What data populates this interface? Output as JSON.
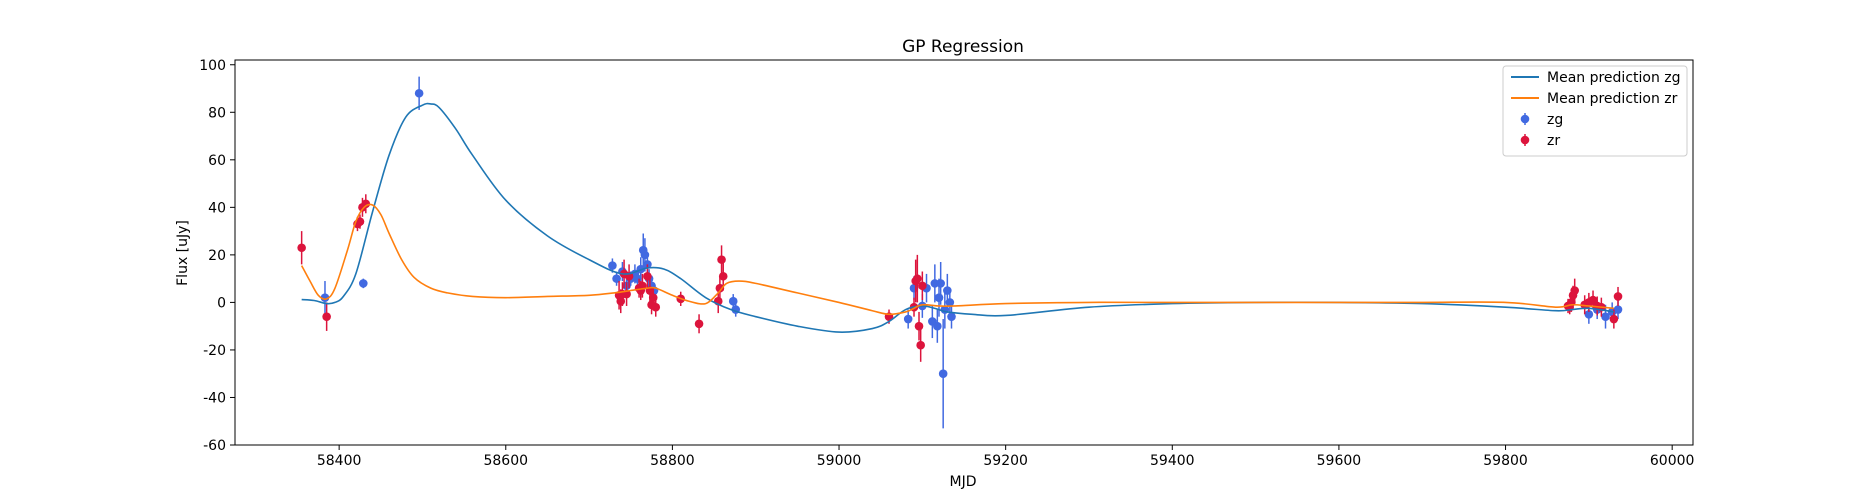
{
  "chart_data": {
    "type": "scatter",
    "title": "GP Regression",
    "xlabel": "MJD",
    "ylabel": "Flux [uJy]",
    "xlim": [
      58275,
      60025
    ],
    "ylim": [
      -60,
      102
    ],
    "xticks": [
      58400,
      58600,
      58800,
      59000,
      59200,
      59400,
      59600,
      59800,
      60000
    ],
    "yticks": [
      -60,
      -40,
      -20,
      0,
      20,
      40,
      60,
      80,
      100
    ],
    "grid": false,
    "legend_position": "top-right",
    "colors": {
      "zg_line": "#1f77b4",
      "zr_line": "#ff7f0e",
      "zg_points": "#4169e1",
      "zr_points": "#dc143c"
    },
    "lines": [
      {
        "name": "Mean prediction zg",
        "x": [
          58355,
          58370,
          58385,
          58395,
          58405,
          58420,
          58440,
          58460,
          58480,
          58500,
          58510,
          58520,
          58540,
          58560,
          58600,
          58650,
          58700,
          58740,
          58770,
          58790,
          58810,
          58840,
          58870,
          58900,
          58950,
          59000,
          59040,
          59060,
          59080,
          59100,
          59115,
          59130,
          59160,
          59200,
          59300,
          59400,
          59500,
          59600,
          59700,
          59800,
          59860,
          59880,
          59900,
          59930
        ],
        "y": [
          1.2,
          0.8,
          -0.5,
          0.0,
          2.5,
          12,
          38,
          62,
          78,
          83,
          83.5,
          82,
          73,
          62,
          43,
          28,
          18,
          12,
          14.5,
          14,
          10,
          2,
          -3,
          -6,
          -10,
          -12.5,
          -11,
          -8,
          -3,
          -1.5,
          -2.5,
          -4,
          -5,
          -5.5,
          -2,
          -0.5,
          0,
          0,
          -0.5,
          -2,
          -3.5,
          -3,
          -2.5,
          -4
        ]
      },
      {
        "name": "Mean prediction zr",
        "x": [
          58355,
          58365,
          58375,
          58385,
          58395,
          58410,
          58420,
          58430,
          58440,
          58450,
          58460,
          58475,
          58490,
          58510,
          58530,
          58560,
          58600,
          58650,
          58700,
          58730,
          58750,
          58770,
          58780,
          58800,
          58820,
          58840,
          58855,
          58865,
          58880,
          58900,
          58950,
          59000,
          59040,
          59060,
          59080,
          59090,
          59100,
          59120,
          59140,
          59200,
          59300,
          59400,
          59500,
          59600,
          59700,
          59800,
          59860,
          59880,
          59900,
          59930
        ],
        "y": [
          15.5,
          9,
          3,
          1.5,
          6,
          22,
          34,
          40,
          41,
          37,
          29,
          18,
          10.5,
          6,
          4,
          2.5,
          2,
          2.5,
          3,
          4,
          5,
          6,
          6,
          3,
          0.5,
          -0.5,
          4,
          8,
          9,
          8,
          4,
          0,
          -3.5,
          -5,
          -4,
          -2.5,
          -1,
          -1.5,
          -1.5,
          -0.5,
          0,
          0,
          0,
          0,
          0,
          0,
          -2,
          -1,
          -1.5,
          -2.5
        ]
      }
    ],
    "points": [
      {
        "name": "zg",
        "x": [
          58383,
          58429,
          58496,
          58728,
          58733,
          58740,
          58745,
          58750,
          58755,
          58758,
          58762,
          58765,
          58767,
          58770,
          58772,
          58775,
          58778,
          58873,
          58876,
          59083,
          59090,
          59100,
          59105,
          59112,
          59115,
          59118,
          59120,
          59122,
          59125,
          59127,
          59130,
          59133,
          59135,
          59900,
          59910,
          59920,
          59928,
          59935
        ],
        "y": [
          2,
          8,
          88,
          15.5,
          10,
          13,
          7,
          10,
          12,
          10,
          14,
          22,
          20,
          16,
          10,
          7,
          5,
          0.5,
          -3,
          -7,
          6,
          -1.5,
          6,
          -8,
          8,
          -10,
          2,
          8,
          -30,
          -3,
          5,
          0,
          -6,
          -5,
          -3,
          -6,
          -4,
          -3
        ],
        "err": [
          7,
          2,
          7,
          3,
          3,
          4,
          3,
          3,
          4,
          4,
          5,
          7,
          7,
          5,
          4,
          3,
          3,
          3,
          3,
          4,
          5,
          5,
          6,
          7,
          8,
          7,
          8,
          9,
          23,
          8,
          7,
          6,
          5,
          4,
          4,
          5,
          4,
          4
        ]
      },
      {
        "name": "zr",
        "x": [
          58355,
          58385,
          58422,
          58425,
          58428,
          58432,
          58736,
          58738,
          58740,
          58742,
          58745,
          58748,
          58760,
          58762,
          58764,
          58770,
          58773,
          58775,
          58777,
          58780,
          58810,
          58832,
          58855,
          58857,
          58859,
          58861,
          59060,
          59090,
          59092,
          59094,
          59096,
          59098,
          59100,
          59875,
          59877,
          59879,
          59881,
          59883,
          59895,
          59900,
          59905,
          59910,
          59915,
          59930,
          59935
        ],
        "y": [
          23,
          -6,
          33,
          34,
          40,
          41.5,
          3,
          0.5,
          3.5,
          12,
          3.5,
          11,
          6,
          5,
          7,
          11,
          5,
          -1,
          2,
          -2,
          1.5,
          -9,
          0.5,
          6,
          18,
          11,
          -6,
          -2,
          9,
          10,
          -10,
          -18,
          7,
          -1.5,
          -2,
          0,
          3,
          5,
          -1,
          0,
          1,
          -1.5,
          -2,
          -7,
          2.5
        ],
        "err": [
          7,
          6,
          3,
          3,
          4,
          4,
          6,
          5,
          5,
          6,
          5,
          5,
          4,
          4,
          5,
          5,
          5,
          4,
          4,
          4,
          3,
          4,
          5,
          5,
          6,
          6,
          3,
          4,
          9,
          10,
          6,
          7,
          6,
          3,
          3,
          4,
          4,
          5,
          4,
          4,
          4,
          4,
          4,
          4,
          4
        ]
      }
    ],
    "legend": [
      {
        "label": "Mean prediction zg",
        "kind": "line",
        "color": "#1f77b4"
      },
      {
        "label": "Mean prediction zr",
        "kind": "line",
        "color": "#ff7f0e"
      },
      {
        "label": "zg",
        "kind": "marker",
        "color": "#4169e1"
      },
      {
        "label": "zr",
        "kind": "marker",
        "color": "#dc143c"
      }
    ]
  }
}
